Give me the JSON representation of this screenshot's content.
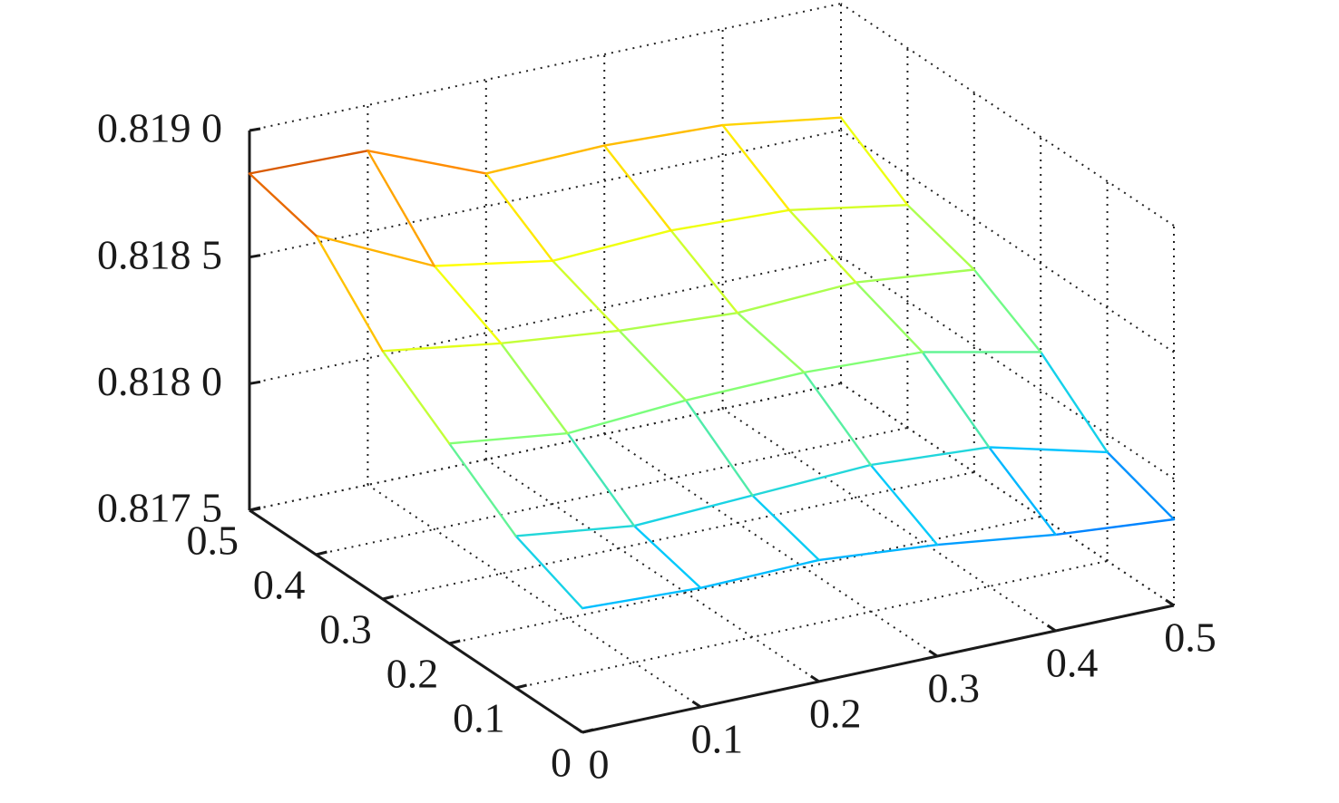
{
  "chart_data": {
    "type": "surface-mesh",
    "title": "",
    "xlabel": "",
    "ylabel": "",
    "zlabel": "",
    "grid": true,
    "x": [
      0,
      0.1,
      0.2,
      0.3,
      0.4,
      0.5
    ],
    "y": [
      0,
      0.1,
      0.2,
      0.3,
      0.4,
      0.5
    ],
    "x_ticks": [
      "0",
      "0.1",
      "0.2",
      "0.3",
      "0.4",
      "0.5"
    ],
    "y_ticks": [
      "0",
      "0.1",
      "0.2",
      "0.3",
      "0.4",
      "0.5"
    ],
    "z_ticks": [
      "0.817 5",
      "0.818 0",
      "0.818 5",
      "0.819 0"
    ],
    "xlim": [
      0,
      0.5
    ],
    "ylim": [
      0,
      0.5
    ],
    "zlim": [
      0.8175,
      0.819
    ],
    "z": [
      [
        0.81799,
        0.81797,
        0.81798,
        0.81794,
        0.81788,
        0.81784
      ],
      [
        0.8181,
        0.81804,
        0.81806,
        0.81808,
        0.81805,
        0.81793
      ],
      [
        0.81829,
        0.81823,
        0.81826,
        0.81827,
        0.81825,
        0.81815
      ],
      [
        0.81848,
        0.81841,
        0.81836,
        0.81833,
        0.81835,
        0.8183
      ],
      [
        0.81876,
        0.81854,
        0.81846,
        0.81848,
        0.81846,
        0.81838
      ],
      [
        0.81883,
        0.81882,
        0.81863,
        0.81864,
        0.81862,
        0.81855
      ]
    ],
    "colormap": [
      "#00008f",
      "#0050ff",
      "#00c8ff",
      "#7dff7a",
      "#ffff00",
      "#ff8000",
      "#800000"
    ]
  }
}
